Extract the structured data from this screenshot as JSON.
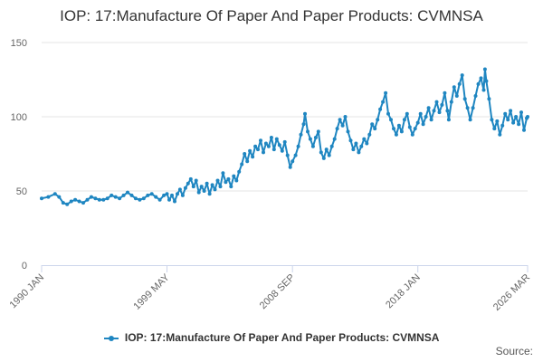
{
  "chart_data": {
    "type": "line",
    "title": "IOP: 17:Manufacture Of Paper And Paper Products: CVMNSA",
    "xlabel": "",
    "ylabel": "",
    "ylim": [
      0,
      150
    ],
    "yticks": [
      0,
      50,
      100,
      150
    ],
    "xlim": [
      1990.0,
      2026.17
    ],
    "xticks": [
      {
        "label": "1990 JAN",
        "value": 1990.0
      },
      {
        "label": "1999 MAY",
        "value": 1999.33
      },
      {
        "label": "2008 SEP",
        "value": 2008.67
      },
      {
        "label": "2018 JAN",
        "value": 2018.0
      },
      {
        "label": "2026 MAR",
        "value": 2026.17
      }
    ],
    "grid": true,
    "legend_position": "bottom",
    "series": [
      {
        "name": "IOP: 17:Manufacture Of Paper And Paper Products: CVMNSA",
        "color": "#1f86c1",
        "points": [
          [
            1990.0,
            45
          ],
          [
            1990.5,
            46
          ],
          [
            1991.0,
            48
          ],
          [
            1991.3,
            46
          ],
          [
            1991.6,
            42
          ],
          [
            1991.9,
            41
          ],
          [
            1992.2,
            43
          ],
          [
            1992.5,
            44
          ],
          [
            1992.8,
            43
          ],
          [
            1993.1,
            42
          ],
          [
            1993.4,
            44
          ],
          [
            1993.7,
            46
          ],
          [
            1994.0,
            45
          ],
          [
            1994.3,
            44
          ],
          [
            1994.6,
            44
          ],
          [
            1994.9,
            45
          ],
          [
            1995.2,
            47
          ],
          [
            1995.5,
            46
          ],
          [
            1995.8,
            45
          ],
          [
            1996.1,
            47
          ],
          [
            1996.4,
            49
          ],
          [
            1996.7,
            47
          ],
          [
            1997.0,
            45
          ],
          [
            1997.3,
            44
          ],
          [
            1997.6,
            45
          ],
          [
            1997.9,
            47
          ],
          [
            1998.2,
            48
          ],
          [
            1998.5,
            46
          ],
          [
            1998.8,
            44
          ],
          [
            1999.1,
            47
          ],
          [
            1999.33,
            48
          ],
          [
            1999.5,
            44
          ],
          [
            1999.7,
            47
          ],
          [
            1999.9,
            43
          ],
          [
            2000.1,
            48
          ],
          [
            2000.3,
            51
          ],
          [
            2000.5,
            47
          ],
          [
            2000.7,
            52
          ],
          [
            2000.9,
            55
          ],
          [
            2001.1,
            58
          ],
          [
            2001.3,
            53
          ],
          [
            2001.5,
            57
          ],
          [
            2001.7,
            49
          ],
          [
            2001.9,
            53
          ],
          [
            2002.1,
            50
          ],
          [
            2002.3,
            55
          ],
          [
            2002.5,
            48
          ],
          [
            2002.7,
            54
          ],
          [
            2002.9,
            51
          ],
          [
            2003.1,
            57
          ],
          [
            2003.3,
            53
          ],
          [
            2003.5,
            62
          ],
          [
            2003.7,
            56
          ],
          [
            2003.9,
            58
          ],
          [
            2004.1,
            53
          ],
          [
            2004.3,
            60
          ],
          [
            2004.5,
            57
          ],
          [
            2004.7,
            63
          ],
          [
            2004.9,
            68
          ],
          [
            2005.1,
            75
          ],
          [
            2005.3,
            70
          ],
          [
            2005.5,
            77
          ],
          [
            2005.7,
            73
          ],
          [
            2005.9,
            80
          ],
          [
            2006.1,
            78
          ],
          [
            2006.3,
            84
          ],
          [
            2006.5,
            76
          ],
          [
            2006.7,
            82
          ],
          [
            2006.9,
            80
          ],
          [
            2007.1,
            86
          ],
          [
            2007.3,
            78
          ],
          [
            2007.5,
            85
          ],
          [
            2007.7,
            81
          ],
          [
            2007.9,
            77
          ],
          [
            2008.1,
            83
          ],
          [
            2008.3,
            74
          ],
          [
            2008.5,
            66
          ],
          [
            2008.67,
            70
          ],
          [
            2008.9,
            74
          ],
          [
            2009.1,
            80
          ],
          [
            2009.3,
            88
          ],
          [
            2009.5,
            95
          ],
          [
            2009.6,
            102
          ],
          [
            2009.8,
            90
          ],
          [
            2010.0,
            85
          ],
          [
            2010.2,
            80
          ],
          [
            2010.4,
            86
          ],
          [
            2010.6,
            90
          ],
          [
            2010.8,
            76
          ],
          [
            2011.0,
            72
          ],
          [
            2011.2,
            78
          ],
          [
            2011.4,
            74
          ],
          [
            2011.6,
            80
          ],
          [
            2011.8,
            85
          ],
          [
            2012.0,
            92
          ],
          [
            2012.2,
            98
          ],
          [
            2012.4,
            94
          ],
          [
            2012.6,
            100
          ],
          [
            2012.8,
            90
          ],
          [
            2013.0,
            84
          ],
          [
            2013.2,
            78
          ],
          [
            2013.4,
            82
          ],
          [
            2013.6,
            76
          ],
          [
            2013.8,
            80
          ],
          [
            2014.0,
            85
          ],
          [
            2014.2,
            82
          ],
          [
            2014.4,
            88
          ],
          [
            2014.6,
            95
          ],
          [
            2014.8,
            92
          ],
          [
            2015.0,
            98
          ],
          [
            2015.2,
            105
          ],
          [
            2015.4,
            110
          ],
          [
            2015.6,
            116
          ],
          [
            2015.8,
            102
          ],
          [
            2016.0,
            98
          ],
          [
            2016.2,
            92
          ],
          [
            2016.4,
            88
          ],
          [
            2016.6,
            94
          ],
          [
            2016.8,
            90
          ],
          [
            2017.0,
            98
          ],
          [
            2017.2,
            102
          ],
          [
            2017.4,
            93
          ],
          [
            2017.6,
            88
          ],
          [
            2017.8,
            92
          ],
          [
            2018.0,
            96
          ],
          [
            2018.2,
            102
          ],
          [
            2018.4,
            95
          ],
          [
            2018.6,
            100
          ],
          [
            2018.8,
            106
          ],
          [
            2019.0,
            98
          ],
          [
            2019.2,
            104
          ],
          [
            2019.4,
            110
          ],
          [
            2019.6,
            103
          ],
          [
            2019.8,
            108
          ],
          [
            2020.0,
            116
          ],
          [
            2020.2,
            104
          ],
          [
            2020.3,
            98
          ],
          [
            2020.5,
            110
          ],
          [
            2020.7,
            120
          ],
          [
            2020.9,
            114
          ],
          [
            2021.1,
            122
          ],
          [
            2021.3,
            128
          ],
          [
            2021.5,
            112
          ],
          [
            2021.7,
            106
          ],
          [
            2021.9,
            98
          ],
          [
            2022.1,
            106
          ],
          [
            2022.3,
            114
          ],
          [
            2022.5,
            122
          ],
          [
            2022.7,
            126
          ],
          [
            2022.9,
            118
          ],
          [
            2023.0,
            132
          ],
          [
            2023.1,
            124
          ],
          [
            2023.3,
            112
          ],
          [
            2023.5,
            98
          ],
          [
            2023.7,
            92
          ],
          [
            2023.9,
            97
          ],
          [
            2024.1,
            88
          ],
          [
            2024.3,
            94
          ],
          [
            2024.5,
            102
          ],
          [
            2024.7,
            98
          ],
          [
            2024.9,
            104
          ],
          [
            2025.1,
            96
          ],
          [
            2025.3,
            100
          ],
          [
            2025.5,
            95
          ],
          [
            2025.7,
            103
          ],
          [
            2025.9,
            91
          ],
          [
            2026.1,
            99
          ],
          [
            2026.17,
            100
          ]
        ]
      }
    ]
  },
  "footer": {
    "source_label": "Source:"
  }
}
